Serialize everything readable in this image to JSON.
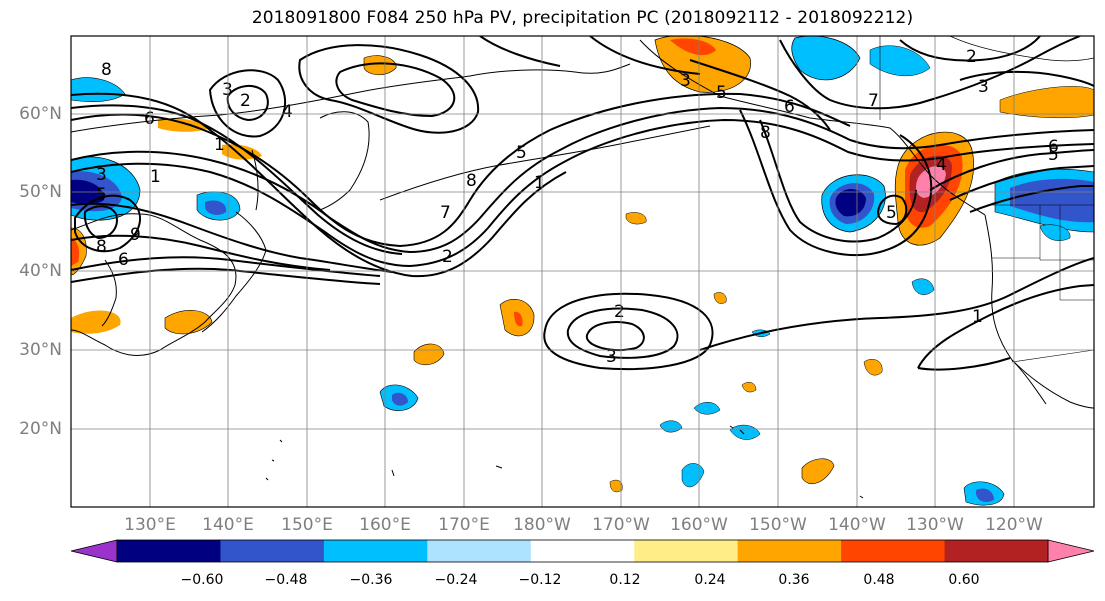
{
  "title": "2018091800 F084 250 hPa PV, precipitation PC (2018092112 - 2018092212)",
  "map": {
    "lat_labels": [
      "60°N",
      "50°N",
      "40°N",
      "30°N",
      "20°N"
    ],
    "lon_labels": [
      "130°E",
      "140°E",
      "150°E",
      "160°E",
      "170°E",
      "180°W",
      "170°W",
      "160°W",
      "150°W",
      "140°W",
      "130°W",
      "120°W"
    ],
    "pv_contour_labels": [
      "1",
      "2",
      "3",
      "4",
      "5",
      "6",
      "7",
      "8",
      "9"
    ]
  },
  "colorbar": {
    "colors": [
      "#9933cc",
      "#000080",
      "#3355cc",
      "#00bfff",
      "#aee3ff",
      "#ffffff",
      "#ffee88",
      "#ffa500",
      "#ff4500",
      "#b22222",
      "#ff80aa"
    ],
    "ticks": [
      "−0.60",
      "−0.48",
      "−0.36",
      "−0.24",
      "−0.12",
      "0.12",
      "0.24",
      "0.36",
      "0.48",
      "0.60"
    ]
  }
}
